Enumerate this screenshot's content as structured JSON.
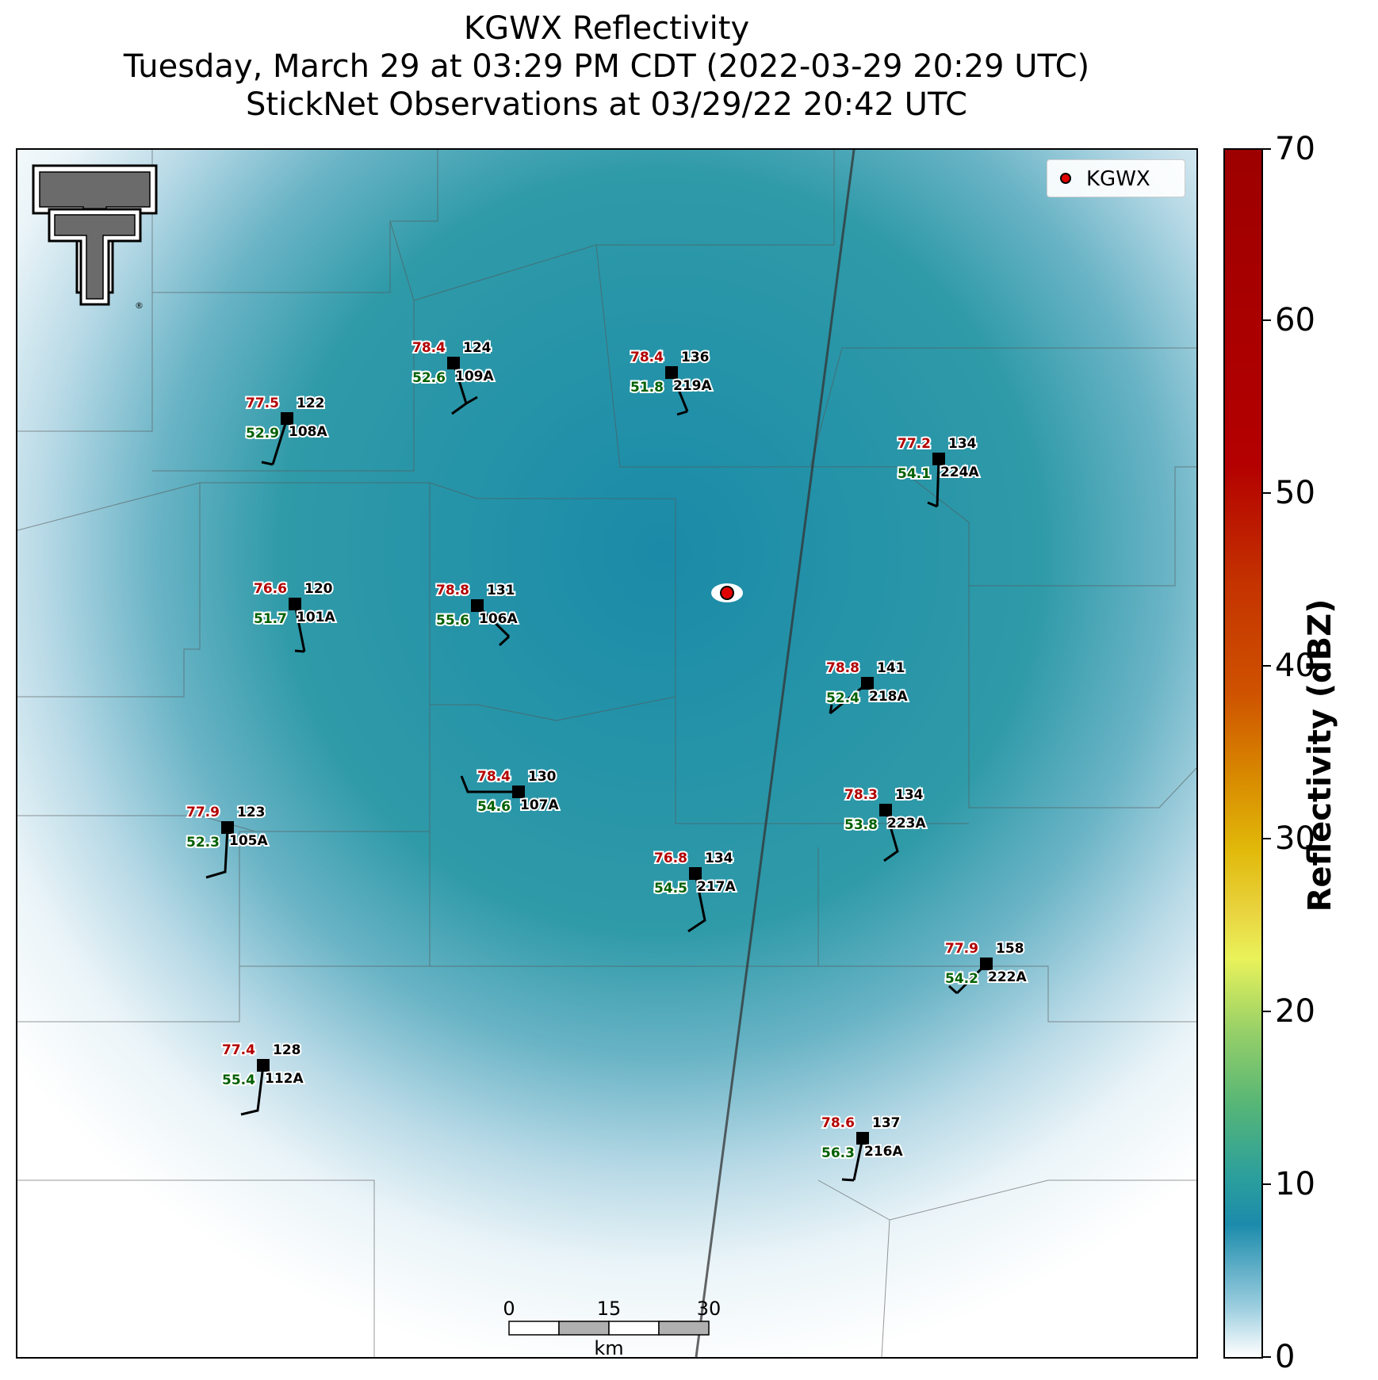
{
  "title": {
    "line1": "KGWX Reflectivity",
    "line2": "Tuesday, March 29 at 03:29 PM CDT (2022-03-29 20:29 UTC)",
    "line3": "StickNet Observations at 03/29/22 20:42 UTC"
  },
  "legend": {
    "label": "KGWX",
    "marker_color": "#e00000"
  },
  "colorbar": {
    "label": "Reflectivity (dBZ)",
    "ticks": [
      "0",
      "10",
      "20",
      "30",
      "40",
      "50",
      "60",
      "70"
    ],
    "colors": [
      "#ffffff",
      "#1b8bab",
      "#57b676",
      "#e9f25a",
      "#e1b90a",
      "#d88a00",
      "#c43300",
      "#9d0000"
    ]
  },
  "scale_bar": {
    "labels": [
      "0",
      "15",
      "30"
    ],
    "unit": "km"
  },
  "logo": {
    "name": "texas-tech-double-t-logo"
  },
  "stations": [
    {
      "id": "109A",
      "temp": "78.4",
      "dew": "52.6",
      "dir": "124",
      "icon": "wind-barb-icon"
    },
    {
      "id": "219A",
      "temp": "78.4",
      "dew": "51.8",
      "dir": "136",
      "icon": "wind-barb-icon"
    },
    {
      "id": "108A",
      "temp": "77.5",
      "dew": "52.9",
      "dir": "122",
      "icon": "wind-barb-icon"
    },
    {
      "id": "224A",
      "temp": "77.2",
      "dew": "54.1",
      "dir": "134",
      "icon": "wind-barb-icon"
    },
    {
      "id": "101A",
      "temp": "76.6",
      "dew": "51.7",
      "dir": "120",
      "icon": "wind-barb-icon"
    },
    {
      "id": "106A",
      "temp": "78.8",
      "dew": "55.6",
      "dir": "131",
      "icon": "wind-barb-icon"
    },
    {
      "id": "218A",
      "temp": "78.8",
      "dew": "52.4",
      "dir": "141",
      "icon": "wind-barb-icon"
    },
    {
      "id": "107A",
      "temp": "78.4",
      "dew": "54.6",
      "dir": "130",
      "icon": "wind-barb-icon"
    },
    {
      "id": "223A",
      "temp": "78.3",
      "dew": "53.8",
      "dir": "134",
      "icon": "wind-barb-icon"
    },
    {
      "id": "105A",
      "temp": "77.9",
      "dew": "52.3",
      "dir": "123",
      "icon": "wind-barb-icon"
    },
    {
      "id": "217A",
      "temp": "76.8",
      "dew": "54.5",
      "dir": "134",
      "icon": "wind-barb-icon"
    },
    {
      "id": "222A",
      "temp": "77.9",
      "dew": "54.2",
      "dir": "158",
      "icon": "wind-barb-icon"
    },
    {
      "id": "112A",
      "temp": "77.4",
      "dew": "55.4",
      "dir": "128",
      "icon": "wind-barb-icon"
    },
    {
      "id": "216A",
      "temp": "78.6",
      "dew": "56.3",
      "dir": "137",
      "icon": "wind-barb-icon"
    }
  ]
}
